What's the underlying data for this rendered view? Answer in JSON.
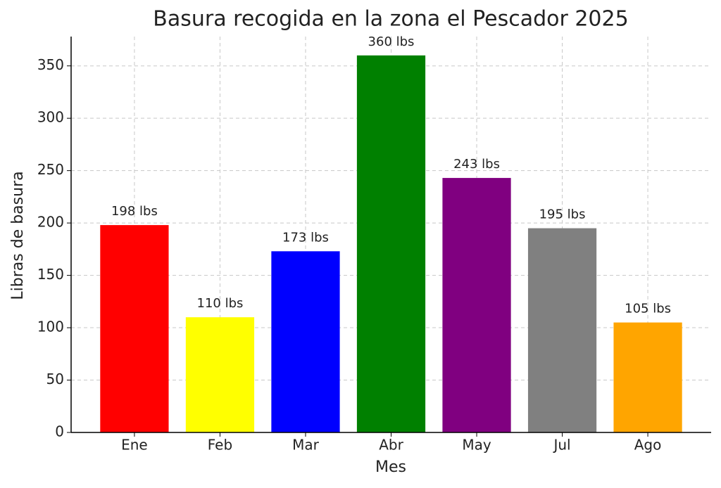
{
  "chart_data": {
    "type": "bar",
    "title": "Basura recogida en la zona el Pescador 2025",
    "x_label": "Mes",
    "y_label": "Libras de basura",
    "categories": [
      "Ene",
      "Feb",
      "Mar",
      "Abr",
      "May",
      "Jul",
      "Ago"
    ],
    "values": [
      198,
      110,
      173,
      360,
      243,
      195,
      105
    ],
    "value_labels": [
      "198 lbs",
      "110 lbs",
      "173 lbs",
      "360 lbs",
      "243 lbs",
      "195 lbs",
      "105 lbs"
    ],
    "colors": [
      "#ff0000",
      "#ffff00",
      "#0000ff",
      "#008000",
      "#800080",
      "#808080",
      "#ffa500"
    ],
    "ylim": [
      0,
      378
    ],
    "yticks": [
      0,
      50,
      100,
      150,
      200,
      250,
      300,
      350
    ],
    "grid": true
  }
}
